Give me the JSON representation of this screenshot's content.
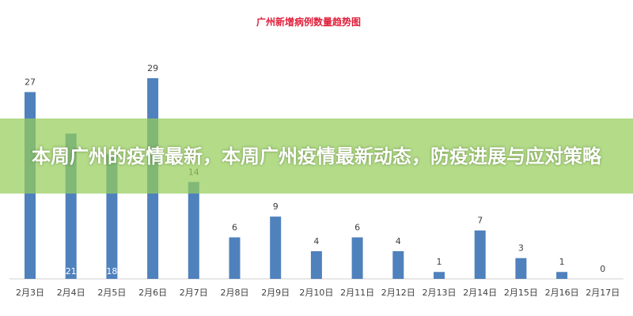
{
  "chart_data": {
    "type": "bar",
    "title": "广州新增病例数量趋势图",
    "categories": [
      "2月3日",
      "2月4日",
      "2月5日",
      "2月6日",
      "2月7日",
      "2月8日",
      "2月9日",
      "2月10日",
      "2月11日",
      "2月12日",
      "2月13日",
      "2月14日",
      "2月15日",
      "2月16日",
      "2月17日"
    ],
    "values": [
      27,
      21,
      18,
      29,
      14,
      6,
      9,
      4,
      6,
      4,
      1,
      7,
      3,
      1,
      0
    ],
    "xlabel": "",
    "ylabel": "",
    "ylim": [
      0,
      29
    ],
    "grid": false,
    "colors": {
      "bar": "#4f81bd",
      "title": "#e0203c",
      "label": "#404040"
    }
  },
  "banner": {
    "headline": "本周广州的疫情最新，本周广州疫情最新动态，防疫进展与应对策略"
  }
}
